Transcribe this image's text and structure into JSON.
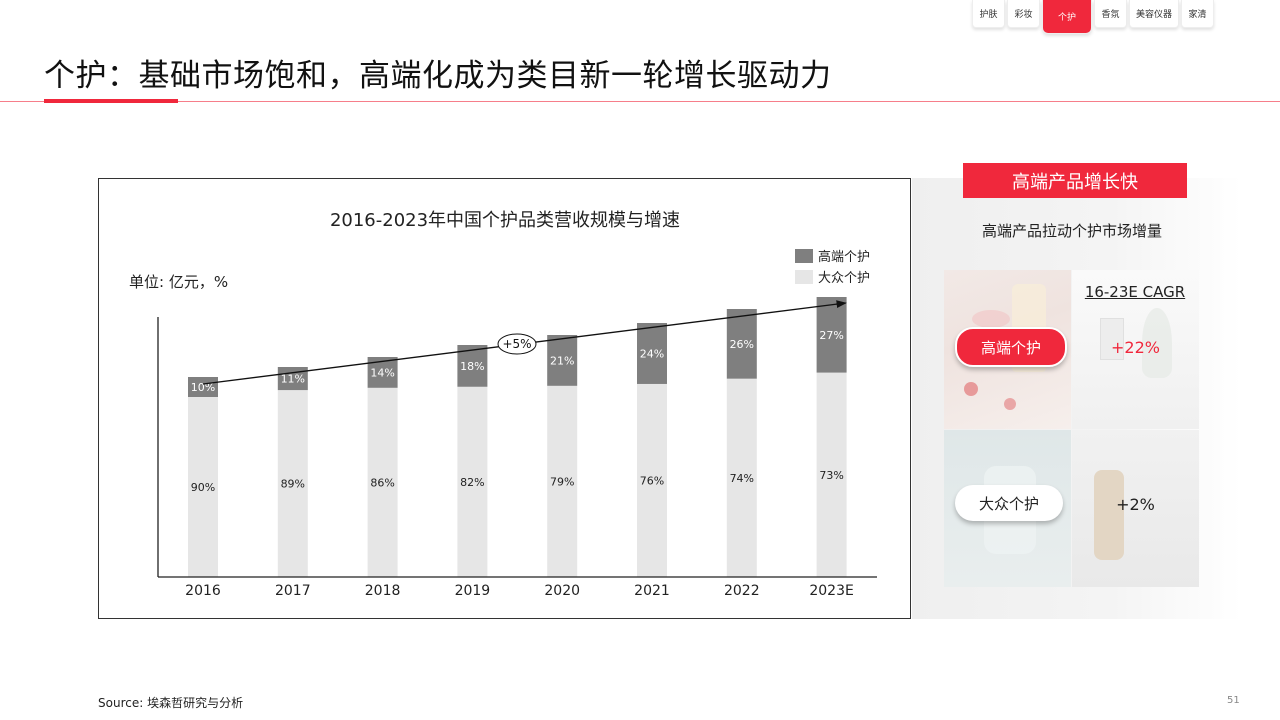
{
  "tabs": [
    {
      "label": "护肤",
      "active": false
    },
    {
      "label": "彩妆",
      "active": false
    },
    {
      "label": "个护",
      "active": true
    },
    {
      "label": "香氛",
      "active": false
    },
    {
      "label": "美容仪器",
      "active": false
    },
    {
      "label": "家清",
      "active": false
    }
  ],
  "title": "个护：基础市场饱和，高端化成为类目新一轮增长驱动力",
  "chart_data": {
    "type": "bar",
    "stacked": true,
    "title": "2016-2023年中国个护品类营收规模与增速",
    "unit_label": "单位: 亿元，%",
    "categories": [
      "2016",
      "2017",
      "2018",
      "2019",
      "2020",
      "2021",
      "2022",
      "2023E"
    ],
    "series": [
      {
        "name": "大众个护",
        "values": [
          90,
          89,
          86,
          82,
          79,
          76,
          74,
          73
        ],
        "labels": [
          "90%",
          "89%",
          "86%",
          "82%",
          "79%",
          "76%",
          "74%",
          "73%"
        ],
        "color": "#e6e6e6"
      },
      {
        "name": "高端个护",
        "values": [
          10,
          11,
          14,
          18,
          21,
          24,
          26,
          27
        ],
        "labels": [
          "10%",
          "11%",
          "14%",
          "18%",
          "21%",
          "24%",
          "26%",
          "27%"
        ],
        "color": "#7f7f7f"
      }
    ],
    "total_index": [
      100,
      105,
      110,
      116,
      121,
      127,
      134,
      140
    ],
    "trend_annotation": "+5%",
    "legend_position": "top-right",
    "grid": false
  },
  "right_panel": {
    "banner": "高端产品增长快",
    "subtitle": "高端产品拉动个护市场增量",
    "cagr_header": "16-23E CAGR",
    "rows": [
      {
        "label": "高端个护",
        "growth": "+22%"
      },
      {
        "label": "大众个护",
        "growth": "+2%"
      }
    ]
  },
  "source": "Source: 埃森哲研究与分析",
  "page_number": "51",
  "colors": {
    "accent": "#f0283c",
    "premium": "#7f7f7f",
    "mass": "#e6e6e6"
  }
}
